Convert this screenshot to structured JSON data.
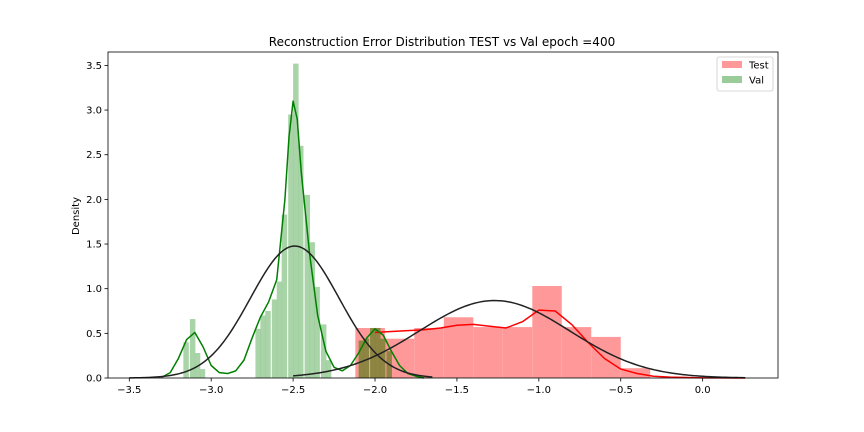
{
  "chart_data": {
    "type": "bar",
    "title": "Reconstruction Error Distribution TEST vs Val epoch =400",
    "xlabel": "",
    "ylabel": "Density",
    "xlim": [
      -3.63,
      0.46
    ],
    "ylim": [
      0,
      3.65
    ],
    "xticks": [
      -3.5,
      -3.0,
      -2.5,
      -2.0,
      -1.5,
      -1.0,
      -0.5,
      0.0
    ],
    "xtick_labels": [
      "−3.5",
      "−3.0",
      "−2.5",
      "−2.0",
      "−1.5",
      "−1.0",
      "−0.5",
      "0.0"
    ],
    "yticks": [
      0.0,
      0.5,
      1.0,
      1.5,
      2.0,
      2.5,
      3.0,
      3.5
    ],
    "ytick_labels": [
      "0.0",
      "0.5",
      "1.0",
      "1.5",
      "2.0",
      "2.5",
      "3.0",
      "3.5"
    ],
    "grid": false,
    "legend_position": "top-right",
    "legend": [
      {
        "label": "Test",
        "color": "#ff9999"
      },
      {
        "label": "Val",
        "color": "#99cc99"
      }
    ],
    "series": [
      {
        "name": "Test",
        "kind": "histogram",
        "color": "#ff0000",
        "fill": "#ff9999",
        "bin_width": 0.18,
        "bins": [
          {
            "x0": -2.12,
            "h": 0.56
          },
          {
            "x0": -1.94,
            "h": 0.44
          },
          {
            "x0": -1.76,
            "h": 0.56
          },
          {
            "x0": -1.58,
            "h": 0.68
          },
          {
            "x0": -1.4,
            "h": 0.57
          },
          {
            "x0": -1.22,
            "h": 0.57
          },
          {
            "x0": -1.04,
            "h": 1.03
          },
          {
            "x0": -0.86,
            "h": 0.57
          },
          {
            "x0": -0.68,
            "h": 0.46
          },
          {
            "x0": -0.5,
            "h": 0.11
          }
        ],
        "kde": {
          "x": [
            -2.0,
            -1.9,
            -1.8,
            -1.7,
            -1.6,
            -1.5,
            -1.4,
            -1.3,
            -1.2,
            -1.1,
            -1.0,
            -0.9,
            -0.8,
            -0.7,
            -0.6,
            -0.5,
            -0.4,
            -0.3,
            -0.2,
            -0.1,
            0.0,
            0.1,
            0.2,
            0.26
          ],
          "y": [
            0.51,
            0.52,
            0.53,
            0.54,
            0.56,
            0.59,
            0.6,
            0.58,
            0.56,
            0.63,
            0.76,
            0.75,
            0.6,
            0.4,
            0.22,
            0.1,
            0.05,
            0.02,
            0.01,
            0.005,
            0.002,
            0.001,
            0.0,
            0.0
          ]
        },
        "fit": {
          "mu": -1.27,
          "sigma": 0.46,
          "x_range": [
            -2.5,
            0.26
          ]
        }
      },
      {
        "name": "Val",
        "kind": "histogram",
        "color": "#008000",
        "fill": "#99cc99",
        "bin_width": 0.0333,
        "bins": [
          {
            "x0": -3.17,
            "h": 0.4
          },
          {
            "x0": -3.13,
            "h": 0.66
          },
          {
            "x0": -3.1,
            "h": 0.28
          },
          {
            "x0": -3.07,
            "h": 0.1
          },
          {
            "x0": -2.73,
            "h": 0.55
          },
          {
            "x0": -2.7,
            "h": 0.7
          },
          {
            "x0": -2.67,
            "h": 0.75
          },
          {
            "x0": -2.63,
            "h": 0.88
          },
          {
            "x0": -2.6,
            "h": 1.08
          },
          {
            "x0": -2.57,
            "h": 1.83
          },
          {
            "x0": -2.53,
            "h": 2.95
          },
          {
            "x0": -2.5,
            "h": 3.52
          },
          {
            "x0": -2.47,
            "h": 2.6
          },
          {
            "x0": -2.43,
            "h": 2.05
          },
          {
            "x0": -2.4,
            "h": 1.52
          },
          {
            "x0": -2.37,
            "h": 1.02
          },
          {
            "x0": -2.33,
            "h": 0.6
          },
          {
            "x0": -2.3,
            "h": 0.2
          },
          {
            "x0": -2.1,
            "h": 0.42
          },
          {
            "x0": -2.07,
            "h": 0.44
          },
          {
            "x0": -2.03,
            "h": 0.56
          },
          {
            "x0": -2.0,
            "h": 0.56
          },
          {
            "x0": -1.97,
            "h": 0.44
          },
          {
            "x0": -1.93,
            "h": 0.3
          }
        ],
        "kde": {
          "x": [
            -3.3,
            -3.25,
            -3.2,
            -3.15,
            -3.1,
            -3.05,
            -3.0,
            -2.95,
            -2.9,
            -2.85,
            -2.8,
            -2.75,
            -2.7,
            -2.65,
            -2.6,
            -2.55,
            -2.525,
            -2.5,
            -2.475,
            -2.45,
            -2.4,
            -2.35,
            -2.3,
            -2.25,
            -2.2,
            -2.15,
            -2.1,
            -2.05,
            -2.0,
            -1.95,
            -1.9,
            -1.85,
            -1.8,
            -1.75,
            -1.7
          ],
          "y": [
            0.01,
            0.06,
            0.22,
            0.43,
            0.51,
            0.35,
            0.14,
            0.06,
            0.05,
            0.08,
            0.2,
            0.45,
            0.68,
            0.85,
            1.1,
            2.0,
            2.7,
            3.1,
            2.9,
            2.3,
            1.4,
            0.7,
            0.3,
            0.12,
            0.08,
            0.14,
            0.28,
            0.45,
            0.55,
            0.48,
            0.3,
            0.14,
            0.05,
            0.02,
            0.0
          ]
        },
        "fit": {
          "mu": -2.49,
          "sigma": 0.27,
          "x_range": [
            -3.5,
            -1.65
          ]
        }
      }
    ]
  }
}
